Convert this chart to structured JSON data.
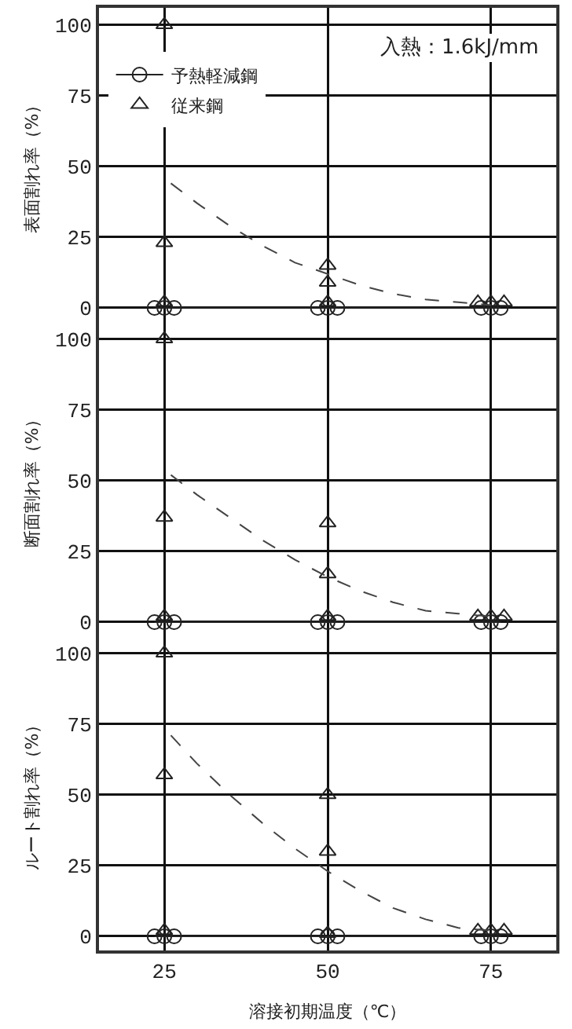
{
  "chart_data": [
    {
      "type": "scatter",
      "ylabel": "表面割れ率（%）",
      "annotations": [
        "入熱：1.6kJ/mm"
      ],
      "xlim": [
        15,
        85
      ],
      "xticks": [
        25,
        50,
        75
      ],
      "ylim": [
        -5,
        106
      ],
      "yticks": [
        0,
        25,
        50,
        75,
        100
      ],
      "grid": true,
      "legend": "top left",
      "tick_labels": "y",
      "series": [
        {
          "name": "予熱軽減鋼",
          "type": "line",
          "marker": "circle",
          "line_style": "solid",
          "color": "#222222",
          "x": [
            23.5,
            25,
            26.5,
            48.5,
            50,
            51.5,
            73.5,
            75,
            76.5
          ],
          "values": [
            0,
            0,
            0,
            0,
            0,
            0,
            0,
            0,
            0
          ]
        },
        {
          "name": "従来鋼",
          "type": "scatter",
          "marker": "triangle",
          "color": "#222222",
          "x": [
            25,
            25,
            25,
            50,
            50,
            50,
            73,
            75,
            77
          ],
          "values": [
            100,
            23,
            2,
            15,
            9,
            2,
            2,
            2,
            2
          ]
        },
        {
          "type": "line",
          "marker": "none",
          "line_style": "dashed",
          "color": "#444444",
          "x": [
            26,
            30,
            35,
            40,
            45,
            50,
            55,
            60,
            65,
            70,
            75
          ],
          "values": [
            44,
            37,
            29,
            22,
            16,
            12,
            8,
            5,
            3,
            2,
            1
          ]
        }
      ]
    },
    {
      "type": "scatter",
      "ylabel": "断面割れ率（%）",
      "xlim": [
        15,
        85
      ],
      "xticks": [
        25,
        50,
        75
      ],
      "ylim": [
        -5,
        106
      ],
      "yticks": [
        0,
        25,
        50,
        75,
        100
      ],
      "grid": true,
      "tick_labels": "y",
      "series": [
        {
          "type": "line",
          "marker": "circle",
          "line_style": "solid",
          "color": "#222222",
          "x": [
            23.5,
            25,
            26.5,
            48.5,
            50,
            51.5,
            73.5,
            75,
            76.5
          ],
          "values": [
            0,
            0,
            0,
            0,
            0,
            0,
            0,
            0,
            0
          ]
        },
        {
          "type": "scatter",
          "marker": "triangle",
          "color": "#222222",
          "x": [
            25,
            25,
            25,
            50,
            50,
            50,
            73,
            75,
            77
          ],
          "values": [
            100,
            37,
            2,
            35,
            17,
            2,
            2,
            2,
            2
          ]
        },
        {
          "type": "line",
          "marker": "none",
          "line_style": "dashed",
          "color": "#444444",
          "x": [
            26,
            30,
            35,
            40,
            45,
            50,
            55,
            60,
            65,
            70,
            75
          ],
          "values": [
            52,
            45,
            37,
            29,
            22,
            16,
            11,
            7,
            4,
            3,
            2
          ]
        }
      ]
    },
    {
      "type": "scatter",
      "ylabel": "ルート割れ率（%）",
      "xlabel": "溶接初期温度（℃）",
      "xlim": [
        15,
        85
      ],
      "xticks": [
        25,
        50,
        75
      ],
      "ylim": [
        -5,
        106
      ],
      "yticks": [
        0,
        25,
        50,
        75,
        100
      ],
      "grid": true,
      "series": [
        {
          "type": "line",
          "marker": "circle",
          "line_style": "solid",
          "color": "#222222",
          "x": [
            23.5,
            25,
            26.5,
            48.5,
            50,
            51.5,
            73.5,
            75,
            76.5
          ],
          "values": [
            0,
            0,
            0,
            0,
            0,
            0,
            0,
            0,
            0
          ]
        },
        {
          "type": "scatter",
          "marker": "triangle",
          "color": "#222222",
          "x": [
            25,
            25,
            25,
            50,
            50,
            50,
            73,
            75,
            77
          ],
          "values": [
            100,
            57,
            2,
            50,
            30,
            1,
            2,
            2,
            2
          ]
        },
        {
          "type": "line",
          "marker": "none",
          "line_style": "dashed",
          "color": "#444444",
          "x": [
            26,
            30,
            35,
            40,
            45,
            50,
            55,
            60,
            65,
            70,
            75
          ],
          "values": [
            71,
            61,
            50,
            40,
            31,
            23,
            16,
            10,
            6,
            3,
            2
          ]
        }
      ]
    }
  ]
}
